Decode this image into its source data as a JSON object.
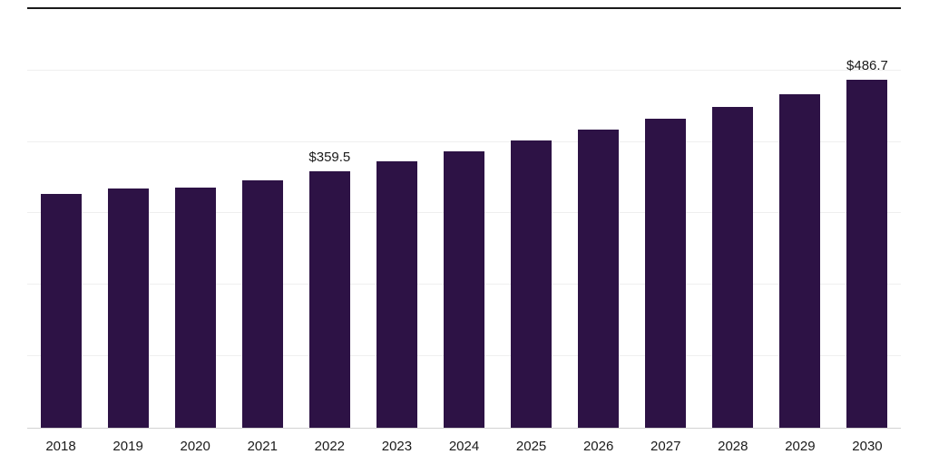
{
  "chart_data": {
    "type": "bar",
    "title": "",
    "xlabel": "",
    "ylabel": "",
    "categories": [
      "2018",
      "2019",
      "2020",
      "2021",
      "2022",
      "2023",
      "2024",
      "2025",
      "2026",
      "2027",
      "2028",
      "2029",
      "2030"
    ],
    "values": [
      327.5,
      334.8,
      336.0,
      346.1,
      359.5,
      372.9,
      386.9,
      401.5,
      416.7,
      432.6,
      449.2,
      467.3,
      486.7
    ],
    "ylim": [
      0,
      586
    ],
    "gridline_values": [
      100,
      200,
      300,
      400,
      500
    ],
    "grid": true,
    "legend": "none",
    "bar_color": "#2d1245",
    "annotations": [
      {
        "category": "2022",
        "text": "$359.5"
      },
      {
        "category": "2030",
        "text": "$486.7"
      }
    ]
  },
  "style": {
    "background": "#ffffff",
    "bar_color": "#2d1245",
    "gridline_color": "#efefef",
    "axis_line_color": "#d2d2d2",
    "top_border_color": "#1a1a1a",
    "label_color": "#1a1a1a"
  }
}
